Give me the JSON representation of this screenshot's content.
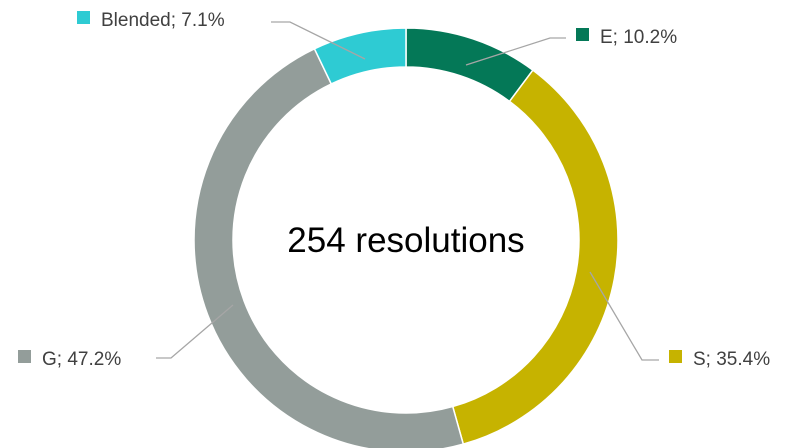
{
  "chart_data": {
    "type": "pie",
    "variant": "donut",
    "center_text": "254 resolutions",
    "slices": [
      {
        "name": "E",
        "percent": 10.2,
        "label": "E; 10.2%",
        "color": "#047857"
      },
      {
        "name": "S",
        "percent": 35.4,
        "label": "S; 35.4%",
        "color": "#C6B300"
      },
      {
        "name": "G",
        "percent": 47.2,
        "label": "G; 47.2%",
        "color": "#939D9A"
      },
      {
        "name": "Blended",
        "percent": 7.1,
        "label": "Blended; 7.1%",
        "color": "#2ECBD3"
      }
    ],
    "start_angle": "12 o'clock",
    "direction": "clockwise",
    "legend": "none"
  }
}
